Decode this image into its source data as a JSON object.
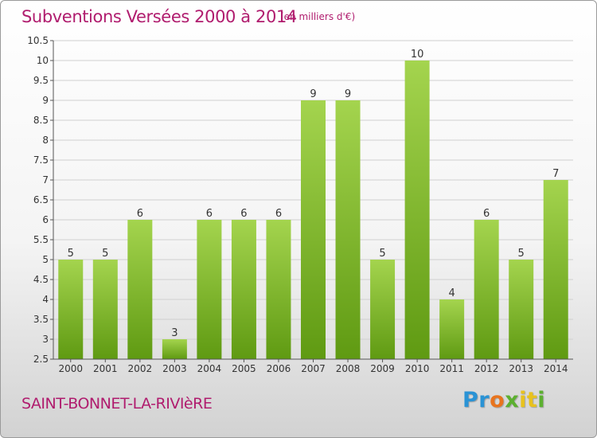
{
  "header": {
    "title": "Subventions Versées 2000 à 2014",
    "unit": "(en milliers d'€)"
  },
  "footer": {
    "place": "SAINT-BONNET-LA-RIVIèRE",
    "logo": "Proxiti"
  },
  "colors": {
    "title": "#b01c6e",
    "bar_light": "#a4d44e",
    "bar_dark": "#5f9a12",
    "grid": "#d0d0d0"
  },
  "chart_data": {
    "type": "bar",
    "title": "Subventions Versées 2000 à 2014",
    "subtitle": "(en milliers d'€)",
    "xlabel": "",
    "ylabel": "",
    "categories": [
      "2000",
      "2001",
      "2002",
      "2003",
      "2004",
      "2005",
      "2006",
      "2007",
      "2008",
      "2009",
      "2010",
      "2011",
      "2012",
      "2013",
      "2014"
    ],
    "values": [
      5,
      5,
      6,
      3,
      6,
      6,
      6,
      9,
      9,
      5,
      10,
      4,
      6,
      5,
      7
    ],
    "ylim": [
      2.5,
      10.5
    ],
    "yticks": [
      "2.5",
      "3",
      "3.5",
      "4",
      "4.5",
      "5",
      "5.5",
      "6",
      "6.5",
      "7",
      "7.5",
      "8",
      "8.5",
      "9",
      "9.5",
      "10",
      "10.5"
    ],
    "grid": true,
    "legend": "none"
  }
}
